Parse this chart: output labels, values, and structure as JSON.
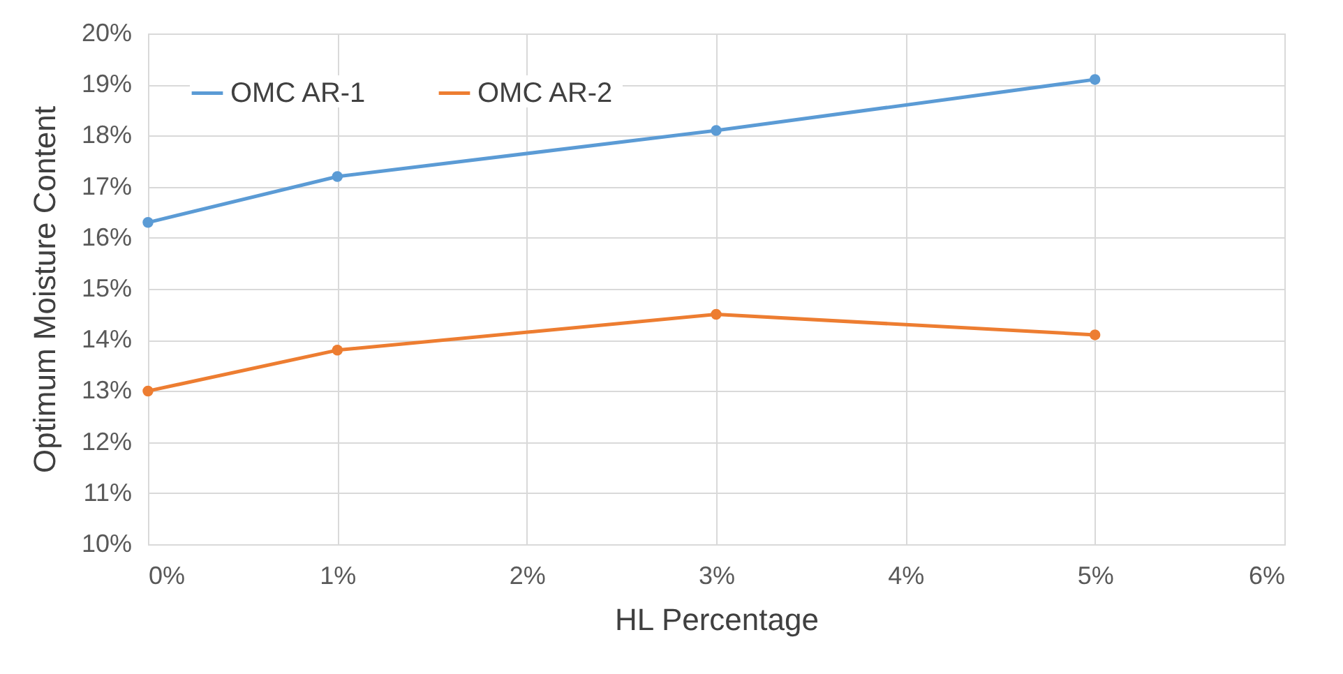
{
  "chart_data": {
    "type": "line",
    "xlabel": "HL Percentage",
    "ylabel": "Optimum Moisture Content",
    "x": [
      0,
      1,
      3,
      5
    ],
    "series": [
      {
        "name": "OMC  AR-1",
        "color": "#5b9bd5",
        "values": [
          16.3,
          17.2,
          18.1,
          19.1
        ]
      },
      {
        "name": "OMC  AR-2",
        "color": "#ed7d31",
        "values": [
          13.0,
          13.8,
          14.5,
          14.1
        ]
      }
    ],
    "xlim": [
      0,
      6
    ],
    "xticks": [
      {
        "value": 0,
        "label": "0%"
      },
      {
        "value": 1,
        "label": "1%"
      },
      {
        "value": 2,
        "label": "2%"
      },
      {
        "value": 3,
        "label": "3%"
      },
      {
        "value": 4,
        "label": "4%"
      },
      {
        "value": 5,
        "label": "5%"
      },
      {
        "value": 6,
        "label": "6%"
      }
    ],
    "ylim": [
      10,
      20
    ],
    "yticks": [
      {
        "value": 10,
        "label": "10%"
      },
      {
        "value": 11,
        "label": "11%"
      },
      {
        "value": 12,
        "label": "12%"
      },
      {
        "value": 13,
        "label": "13%"
      },
      {
        "value": 14,
        "label": "14%"
      },
      {
        "value": 15,
        "label": "15%"
      },
      {
        "value": 16,
        "label": "16%"
      },
      {
        "value": 17,
        "label": "17%"
      },
      {
        "value": 18,
        "label": "18%"
      },
      {
        "value": 19,
        "label": "19%"
      },
      {
        "value": 20,
        "label": "20%"
      }
    ],
    "grid": true,
    "legend": "top left",
    "marker": "circle",
    "line_style": "solid"
  }
}
